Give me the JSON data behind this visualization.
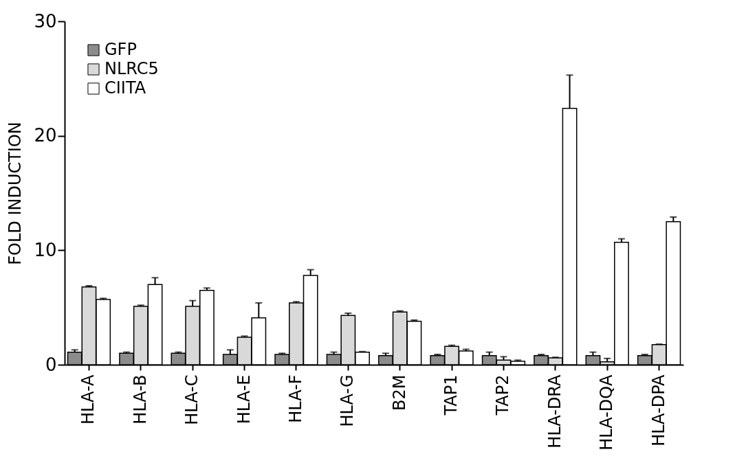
{
  "chart_data": {
    "type": "bar",
    "ylabel": "FOLD INDUCTION",
    "categories": [
      "HLA-A",
      "HLA-B",
      "HLA-C",
      "HLA-E",
      "HLA-F",
      "HLA-G",
      "B2M",
      "TAP1",
      "TAP2",
      "HLA-DRA",
      "HLA-DQA",
      "HLA-DPA"
    ],
    "series": [
      {
        "name": "GFP",
        "color": "#8c8c8c",
        "values": [
          1.1,
          1.0,
          1.0,
          0.9,
          0.9,
          0.9,
          0.8,
          0.8,
          0.8,
          0.8,
          0.8,
          0.8
        ],
        "errors": [
          [
            1.1,
            1.3
          ],
          [
            1.0,
            1.1
          ],
          [
            1.0,
            1.1
          ],
          [
            0.9,
            1.3
          ],
          [
            0.9,
            1.0
          ],
          [
            0.9,
            1.1
          ],
          [
            0.8,
            1.0
          ],
          [
            0.8,
            0.9
          ],
          [
            0.8,
            1.1
          ],
          [
            0.8,
            0.9
          ],
          [
            0.8,
            1.1
          ],
          [
            0.8,
            0.9
          ]
        ]
      },
      {
        "name": "NLRC5",
        "color": "#d9d9d9",
        "values": [
          6.8,
          5.1,
          5.1,
          2.4,
          5.4,
          4.3,
          4.6,
          1.6,
          0.4,
          0.6,
          0.25,
          1.75
        ],
        "errors": [
          [
            6.8,
            6.9
          ],
          [
            5.1,
            5.2
          ],
          [
            5.1,
            5.6
          ],
          [
            2.4,
            2.5
          ],
          [
            5.4,
            5.5
          ],
          [
            4.3,
            4.5
          ],
          [
            4.6,
            4.7
          ],
          [
            1.6,
            1.7
          ],
          [
            0.4,
            0.7
          ],
          [
            0.6,
            0.65
          ],
          [
            0.25,
            0.55
          ],
          [
            1.75,
            1.8
          ]
        ]
      },
      {
        "name": "CIITA",
        "color": "#ffffff",
        "values": [
          5.7,
          7.0,
          6.5,
          4.1,
          7.8,
          1.1,
          3.8,
          1.2,
          0.3,
          22.4,
          10.7,
          12.5
        ],
        "errors": [
          [
            5.7,
            5.8
          ],
          [
            7.0,
            7.6
          ],
          [
            6.5,
            6.7
          ],
          [
            4.1,
            5.4
          ],
          [
            7.8,
            8.3
          ],
          [
            1.1,
            1.15
          ],
          [
            3.8,
            3.9
          ],
          [
            1.2,
            1.35
          ],
          [
            0.3,
            0.4
          ],
          [
            22.4,
            25.3
          ],
          [
            10.7,
            11.0
          ],
          [
            12.5,
            12.9
          ]
        ]
      }
    ],
    "ylim": [
      0,
      30
    ],
    "yticks": [
      0,
      10,
      20,
      30
    ],
    "legend": "top left"
  }
}
